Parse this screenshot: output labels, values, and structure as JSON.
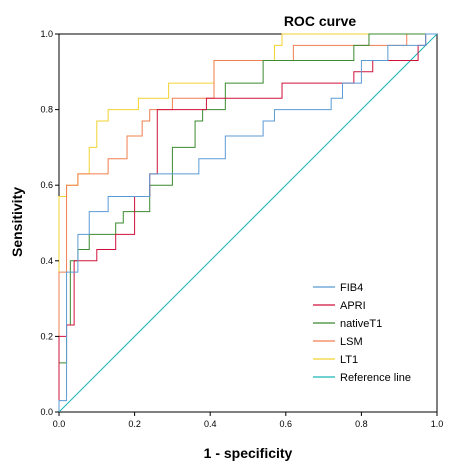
{
  "chart_data": {
    "type": "line",
    "title": "ROC curve",
    "xlabel": "1 - specificity",
    "ylabel": "Sensitivity",
    "xlim": [
      0,
      1
    ],
    "ylim": [
      0,
      1
    ],
    "xticks": [
      "0.0",
      "0.2",
      "0.4",
      "0.6",
      "0.8",
      "1.0"
    ],
    "yticks": [
      "0.0",
      "0.2",
      "0.4",
      "0.6",
      "0.8",
      "1.0"
    ],
    "grid": false,
    "legend_position": "bottom-right",
    "series": [
      {
        "name": "FIB4",
        "color": "#5b9bd5",
        "x": [
          0,
          0,
          0.02,
          0.02,
          0.05,
          0.05,
          0.08,
          0.08,
          0.13,
          0.13,
          0.24,
          0.24,
          0.29,
          0.29,
          0.37,
          0.37,
          0.44,
          0.44,
          0.54,
          0.54,
          0.57,
          0.57,
          0.72,
          0.72,
          0.75,
          0.75,
          0.8,
          0.8,
          0.87,
          0.87,
          0.97,
          0.97,
          1
        ],
        "y": [
          0,
          0.03,
          0.03,
          0.37,
          0.37,
          0.47,
          0.47,
          0.53,
          0.53,
          0.57,
          0.57,
          0.63,
          0.63,
          0.63,
          0.63,
          0.67,
          0.67,
          0.73,
          0.73,
          0.77,
          0.77,
          0.8,
          0.8,
          0.83,
          0.83,
          0.87,
          0.87,
          0.93,
          0.93,
          0.97,
          0.97,
          1,
          1
        ]
      },
      {
        "name": "APRI",
        "color": "#d0103a",
        "x": [
          0,
          0,
          0.02,
          0.02,
          0.04,
          0.04,
          0.1,
          0.1,
          0.15,
          0.15,
          0.2,
          0.2,
          0.24,
          0.24,
          0.26,
          0.26,
          0.37,
          0.37,
          0.39,
          0.39,
          0.49,
          0.49,
          0.59,
          0.59,
          0.65,
          0.65,
          0.78,
          0.78,
          0.83,
          0.83,
          0.9,
          0.9,
          0.95,
          0.95,
          0.97,
          0.97,
          1
        ],
        "y": [
          0,
          0.2,
          0.2,
          0.23,
          0.23,
          0.4,
          0.4,
          0.43,
          0.43,
          0.47,
          0.47,
          0.57,
          0.57,
          0.63,
          0.63,
          0.8,
          0.8,
          0.8,
          0.8,
          0.83,
          0.83,
          0.83,
          0.83,
          0.87,
          0.87,
          0.87,
          0.87,
          0.9,
          0.9,
          0.93,
          0.93,
          0.93,
          0.93,
          0.97,
          0.97,
          1,
          1
        ]
      },
      {
        "name": "nativeT1",
        "color": "#3a8a2f",
        "x": [
          0,
          0,
          0.02,
          0.02,
          0.03,
          0.03,
          0.05,
          0.05,
          0.08,
          0.08,
          0.15,
          0.15,
          0.17,
          0.17,
          0.24,
          0.24,
          0.3,
          0.3,
          0.36,
          0.36,
          0.38,
          0.38,
          0.44,
          0.44,
          0.54,
          0.54,
          0.78,
          0.78,
          0.82,
          0.82,
          1
        ],
        "y": [
          0,
          0.13,
          0.13,
          0.23,
          0.23,
          0.4,
          0.4,
          0.43,
          0.43,
          0.47,
          0.47,
          0.5,
          0.5,
          0.53,
          0.53,
          0.6,
          0.6,
          0.7,
          0.7,
          0.77,
          0.77,
          0.8,
          0.8,
          0.87,
          0.87,
          0.93,
          0.93,
          0.97,
          0.97,
          1,
          1
        ]
      },
      {
        "name": "LSM",
        "color": "#f07f4f",
        "x": [
          0,
          0,
          0.02,
          0.02,
          0.05,
          0.05,
          0.13,
          0.13,
          0.18,
          0.18,
          0.22,
          0.22,
          0.24,
          0.24,
          0.3,
          0.3,
          0.41,
          0.41,
          0.47,
          0.47,
          0.62,
          0.62,
          0.65,
          0.65,
          0.82,
          0.82,
          0.92,
          0.92,
          0.95,
          0.95,
          1
        ],
        "y": [
          0,
          0.37,
          0.37,
          0.6,
          0.6,
          0.63,
          0.63,
          0.67,
          0.67,
          0.73,
          0.73,
          0.77,
          0.77,
          0.8,
          0.8,
          0.83,
          0.83,
          0.93,
          0.93,
          0.93,
          0.93,
          0.97,
          0.97,
          0.97,
          0.97,
          0.97,
          0.97,
          1,
          1,
          1,
          1
        ]
      },
      {
        "name": "LT1",
        "color": "#f2d333",
        "x": [
          0,
          0,
          0.02,
          0.02,
          0.05,
          0.05,
          0.08,
          0.08,
          0.1,
          0.1,
          0.13,
          0.13,
          0.21,
          0.21,
          0.29,
          0.29,
          0.31,
          0.31,
          0.41,
          0.41,
          0.44,
          0.44,
          0.57,
          0.57,
          0.59,
          0.59,
          0.8,
          0.8,
          0.93,
          0.93,
          1
        ],
        "y": [
          0,
          0.57,
          0.57,
          0.6,
          0.6,
          0.63,
          0.63,
          0.7,
          0.7,
          0.77,
          0.77,
          0.8,
          0.8,
          0.83,
          0.83,
          0.87,
          0.87,
          0.87,
          0.87,
          0.93,
          0.93,
          0.93,
          0.93,
          0.97,
          0.97,
          1,
          1,
          1,
          1,
          1,
          1
        ]
      },
      {
        "name": "Reference line",
        "color": "#1cb5b5",
        "x": [
          0,
          1
        ],
        "y": [
          0,
          1
        ]
      }
    ]
  }
}
